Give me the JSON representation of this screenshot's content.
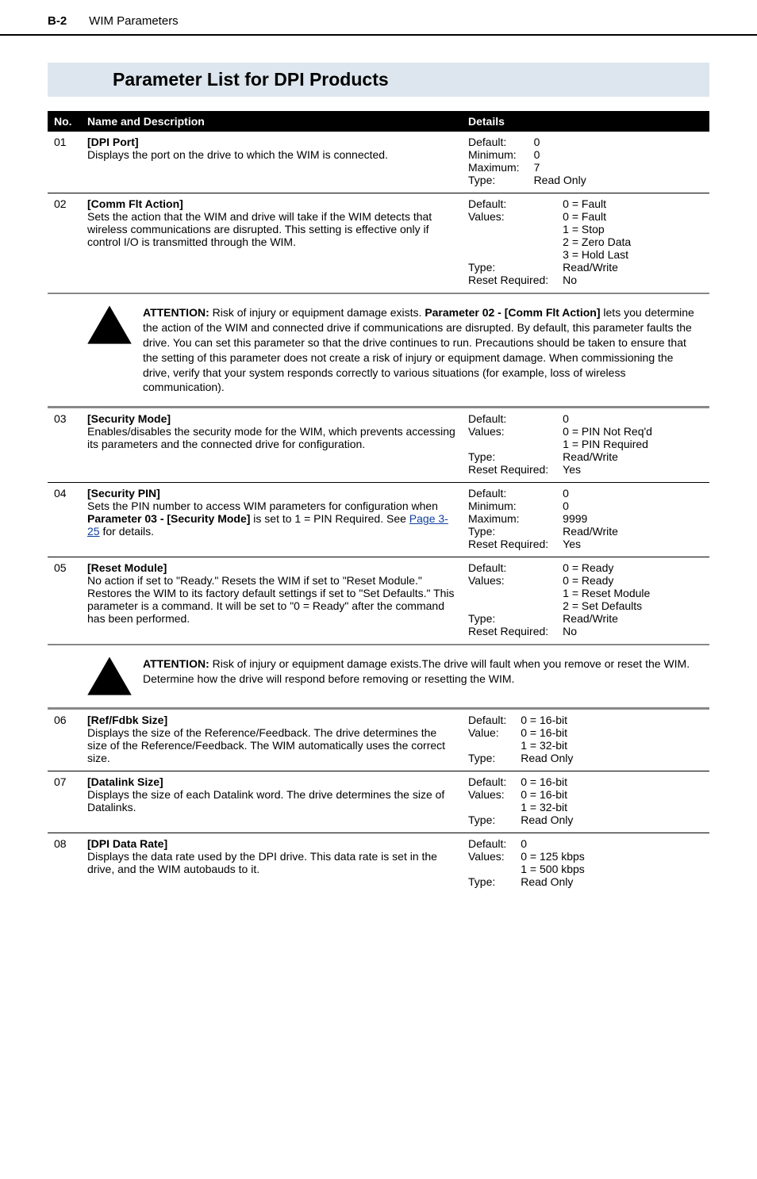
{
  "header": {
    "page_number": "B-2",
    "section": "WIM Parameters"
  },
  "title": "Parameter List for DPI Products",
  "columns": {
    "no": "No.",
    "name": "Name and Description",
    "details": "Details"
  },
  "rows": [
    {
      "no": "01",
      "name": "[DPI Port]",
      "desc": "Displays the port on the drive to which the WIM is connected.",
      "details": [
        {
          "label": "Default:",
          "value": "0"
        },
        {
          "label": "Minimum:",
          "value": "0"
        },
        {
          "label": "Maximum:",
          "value": "7"
        },
        {
          "label": "Type:",
          "value": "Read Only"
        }
      ]
    },
    {
      "no": "02",
      "name": "[Comm Flt Action]",
      "desc": "Sets the action that the WIM and drive will take if the WIM detects that wireless communications are disrupted. This setting is effective only if control I/O is transmitted through the WIM.",
      "details": [
        {
          "label": "Default:",
          "value": "0 = Fault"
        },
        {
          "label": "Values:",
          "value": "0 = Fault"
        },
        {
          "label": "",
          "value": "1 = Stop"
        },
        {
          "label": "",
          "value": "2 = Zero Data"
        },
        {
          "label": "",
          "value": "3 = Hold Last"
        },
        {
          "label": "Type:",
          "value": "Read/Write"
        },
        {
          "label": "Reset Required:",
          "value": "No"
        }
      ]
    },
    {
      "attention": true,
      "text_parts": [
        {
          "b": true,
          "t": "ATTENTION:"
        },
        {
          "b": false,
          "t": " Risk of injury or equipment damage exists. "
        },
        {
          "b": true,
          "t": "Parameter 02 - [Comm Flt Action]"
        },
        {
          "b": false,
          "t": " lets you determine the action of the WIM and connected drive if communications are disrupted. By default, this parameter faults the drive. You can set this parameter so that the drive continues to run. Precautions should be taken to ensure that the setting of this parameter does not create a risk of injury or equipment damage. When commissioning the drive, verify that your system responds correctly to various situations (for example, loss of wireless communication)."
        }
      ]
    },
    {
      "no": "03",
      "name": "[Security Mode]",
      "desc": "Enables/disables the security mode for the WIM, which prevents accessing its parameters and the connected drive for configuration.",
      "details": [
        {
          "label": "Default:",
          "value": "0"
        },
        {
          "label": "Values:",
          "value": "0 = PIN Not Req'd"
        },
        {
          "label": "",
          "value": "1 = PIN Required"
        },
        {
          "label": "Type:",
          "value": "Read/Write"
        },
        {
          "label": "Reset Required:",
          "value": "Yes"
        }
      ],
      "after_attention": true
    },
    {
      "no": "04",
      "name": "[Security PIN]",
      "desc_parts": [
        {
          "t": "Sets the PIN number to access WIM parameters for configuration when "
        },
        {
          "b": true,
          "t": "Parameter 03 - [Security Mode]"
        },
        {
          "t": " is set to 1 = PIN Required. See "
        },
        {
          "link": true,
          "t": "Page 3-25"
        },
        {
          "t": " for details."
        }
      ],
      "details": [
        {
          "label": "Default:",
          "value": "0"
        },
        {
          "label": "Minimum:",
          "value": "0"
        },
        {
          "label": "Maximum:",
          "value": "9999"
        },
        {
          "label": "Type:",
          "value": "Read/Write"
        },
        {
          "label": "Reset Required:",
          "value": "Yes"
        }
      ]
    },
    {
      "no": "05",
      "name": "[Reset Module]",
      "desc": "No action if set to \"Ready.\" Resets the WIM if set to \"Reset Module.\" Restores the WIM to its factory default settings if set to \"Set Defaults.\" This parameter is a command. It will be set to \"0 = Ready\" after the command has been performed.",
      "details": [
        {
          "label": "Default:",
          "value": "0 = Ready"
        },
        {
          "label": "Values:",
          "value": "0 = Ready"
        },
        {
          "label": "",
          "value": "1 = Reset Module"
        },
        {
          "label": "",
          "value": "2 = Set Defaults"
        },
        {
          "label": "Type:",
          "value": "Read/Write"
        },
        {
          "label": "Reset Required:",
          "value": "No"
        }
      ]
    },
    {
      "attention": true,
      "text_parts": [
        {
          "b": true,
          "t": "ATTENTION:"
        },
        {
          "b": false,
          "t": " Risk of injury or equipment damage exists.The drive will fault when you remove or reset the WIM. Determine how the drive will respond before removing or resetting the WIM."
        }
      ]
    },
    {
      "no": "06",
      "name": "[Ref/Fdbk Size]",
      "desc": "Displays the size of the Reference/Feedback. The drive determines the size of the Reference/Feedback. The WIM automatically uses the correct size.",
      "details": [
        {
          "label": "Default:",
          "value": "0 = 16-bit"
        },
        {
          "label": "Value:",
          "value": "0 = 16-bit"
        },
        {
          "label": "",
          "value": "1 = 32-bit"
        },
        {
          "label": "Type:",
          "value": "Read Only"
        }
      ],
      "after_attention": true
    },
    {
      "no": "07",
      "name": "[Datalink Size]",
      "desc": "Displays the size of each Datalink word. The drive determines the size of Datalinks.",
      "details": [
        {
          "label": "Default:",
          "value": "0 = 16-bit"
        },
        {
          "label": "Values:",
          "value": "0 = 16-bit"
        },
        {
          "label": "",
          "value": "1 = 32-bit"
        },
        {
          "label": "Type:",
          "value": "Read Only"
        }
      ]
    },
    {
      "no": "08",
      "name": "[DPI Data Rate]",
      "desc": "Displays the data rate used by the DPI drive. This data rate is set in the drive, and the WIM autobauds to it.",
      "details": [
        {
          "label": "Default:",
          "value": "0"
        },
        {
          "label": "Values:",
          "value": "0 = 125 kbps"
        },
        {
          "label": "",
          "value": "1 = 500 kbps"
        },
        {
          "label": "Type:",
          "value": "Read Only"
        }
      ]
    }
  ],
  "colors": {
    "header_bg": "#000000",
    "header_fg": "#ffffff",
    "title_bg": "#dde6ee",
    "warn_fill": "#ec302",
    "warn_border": "#000000",
    "link": "#1040a0"
  }
}
